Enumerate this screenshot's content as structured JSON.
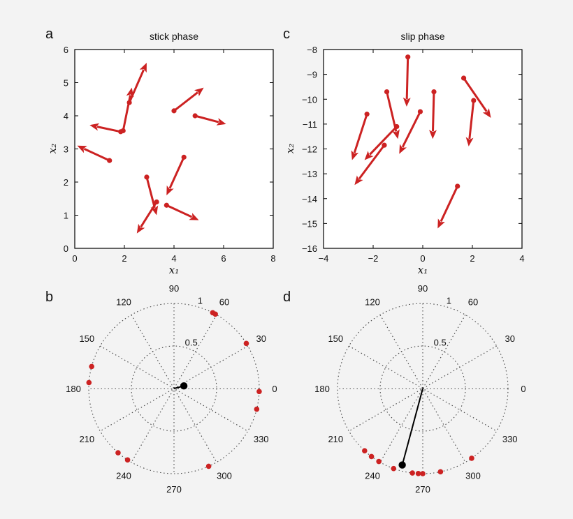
{
  "chart_data": [
    {
      "panel": "a",
      "type": "scatter",
      "title": "stick phase",
      "xlabel": "x₁",
      "ylabel": "x₂",
      "xlim": [
        0,
        8
      ],
      "ylim": [
        0,
        6
      ],
      "xticks": [
        0,
        2,
        4,
        6,
        8
      ],
      "yticks": [
        0,
        1,
        2,
        3,
        4,
        5,
        6
      ],
      "marker_color": "#cc2222",
      "arrows": [
        {
          "x0": 2.2,
          "y0": 4.4,
          "x1": 2.9,
          "y1": 5.6
        },
        {
          "x0": 1.95,
          "y0": 3.55,
          "x1": 2.3,
          "y1": 4.85
        },
        {
          "x0": 1.85,
          "y0": 3.52,
          "x1": 0.6,
          "y1": 3.72
        },
        {
          "x0": 1.4,
          "y0": 2.65,
          "x1": 0.1,
          "y1": 3.1
        },
        {
          "x0": 4.0,
          "y0": 4.15,
          "x1": 5.2,
          "y1": 4.85
        },
        {
          "x0": 4.85,
          "y0": 4.0,
          "x1": 6.1,
          "y1": 3.75
        },
        {
          "x0": 4.4,
          "y0": 2.75,
          "x1": 3.7,
          "y1": 1.6
        },
        {
          "x0": 2.9,
          "y0": 2.15,
          "x1": 3.3,
          "y1": 1.0
        },
        {
          "x0": 3.3,
          "y0": 1.4,
          "x1": 2.5,
          "y1": 0.45
        },
        {
          "x0": 3.7,
          "y0": 1.3,
          "x1": 5.0,
          "y1": 0.85
        }
      ]
    },
    {
      "panel": "c",
      "type": "scatter",
      "title": "slip phase",
      "xlabel": "x₁",
      "ylabel": "x₂",
      "xlim": [
        -4,
        4
      ],
      "ylim": [
        -16,
        -8
      ],
      "xticks": [
        -4,
        -2,
        0,
        2,
        4
      ],
      "yticks": [
        -16,
        -15,
        -14,
        -13,
        -12,
        -11,
        -10,
        -9,
        -8
      ],
      "marker_color": "#cc2222",
      "arrows": [
        {
          "x0": -0.6,
          "y0": -8.3,
          "x1": -0.65,
          "y1": -10.3
        },
        {
          "x0": -1.45,
          "y0": -9.7,
          "x1": -1.0,
          "y1": -11.6
        },
        {
          "x0": 0.45,
          "y0": -9.7,
          "x1": 0.4,
          "y1": -11.6
        },
        {
          "x0": 1.65,
          "y0": -9.15,
          "x1": 2.75,
          "y1": -10.75
        },
        {
          "x0": 2.05,
          "y0": -10.05,
          "x1": 1.85,
          "y1": -11.9
        },
        {
          "x0": -0.1,
          "y0": -10.5,
          "x1": -0.95,
          "y1": -12.2
        },
        {
          "x0": -2.25,
          "y0": -10.6,
          "x1": -2.85,
          "y1": -12.45
        },
        {
          "x0": -1.05,
          "y0": -11.1,
          "x1": -2.35,
          "y1": -12.45
        },
        {
          "x0": -1.55,
          "y0": -11.85,
          "x1": -2.75,
          "y1": -13.45
        },
        {
          "x0": 1.4,
          "y0": -13.5,
          "x1": 0.6,
          "y1": -15.2
        }
      ]
    },
    {
      "panel": "b",
      "type": "scatter",
      "coordinates": "polar",
      "rmax": 1,
      "rings": [
        0.5,
        1
      ],
      "ring_labels": [
        "0.5",
        "1"
      ],
      "angle_labels": [
        "0",
        "30",
        "60",
        "90",
        "120",
        "150",
        "180",
        "210",
        "240",
        "270",
        "300",
        "330"
      ],
      "points_deg": [
        63,
        61,
        32,
        165,
        176,
        358,
        346,
        237,
        229,
        294
      ],
      "points_r": [
        1,
        1,
        1,
        1,
        1,
        1,
        1,
        1,
        1,
        1
      ],
      "mean_vector": {
        "angle_deg": 15,
        "r": 0.12
      },
      "marker_color": "#cc2222",
      "mean_color": "#000000"
    },
    {
      "panel": "d",
      "type": "scatter",
      "coordinates": "polar",
      "rmax": 1,
      "rings": [
        0.5,
        1
      ],
      "ring_labels": [
        "0.5",
        "1"
      ],
      "angle_labels": [
        "0",
        "30",
        "60",
        "90",
        "120",
        "150",
        "180",
        "210",
        "240",
        "270",
        "300",
        "330"
      ],
      "points_deg": [
        227,
        233,
        239,
        250,
        263,
        267,
        270,
        282,
        305
      ],
      "points_r": [
        1,
        1,
        1,
        1,
        1,
        1,
        1,
        1,
        1
      ],
      "mean_vector": {
        "angle_deg": 255,
        "r": 0.93
      },
      "marker_color": "#cc2222",
      "mean_color": "#000000"
    }
  ],
  "labels": {
    "a": "a",
    "b": "b",
    "c": "c",
    "d": "d"
  }
}
